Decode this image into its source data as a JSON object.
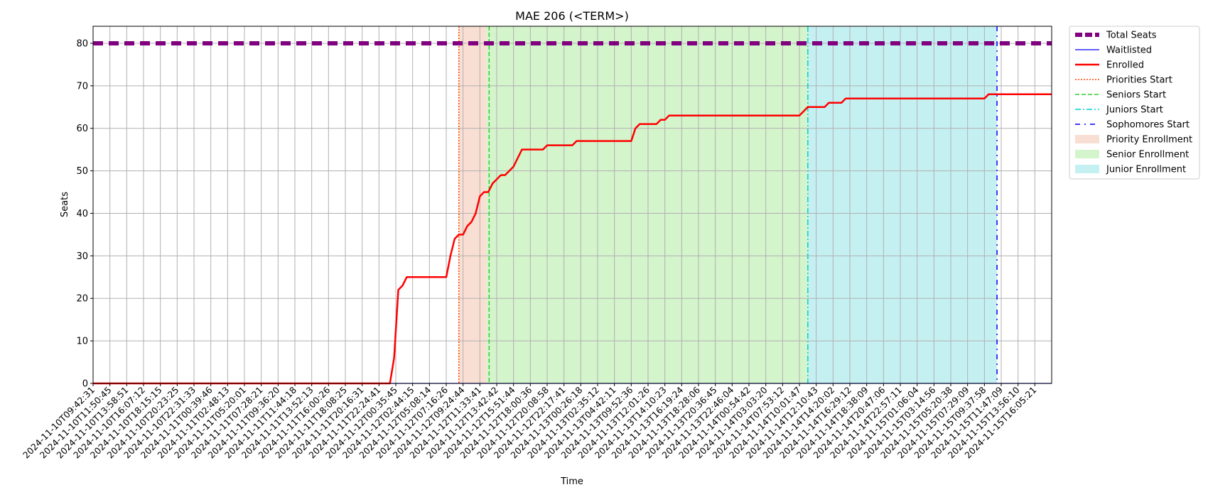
{
  "chart_data": {
    "type": "line",
    "title": "MAE 206 (<TERM>)",
    "xlabel": "Time",
    "ylabel": "Seats",
    "ylim": [
      0,
      84
    ],
    "yticks": [
      0,
      10,
      20,
      30,
      40,
      50,
      60,
      70,
      80
    ],
    "grid": true,
    "legend_placement": "outside upper right",
    "x_tick_labels": [
      "2024-11-10T09:42:31",
      "2024-11-10T11:50:45",
      "2024-11-10T13:58:51",
      "2024-11-10T16:07:12",
      "2024-11-10T18:15:15",
      "2024-11-10T20:23:25",
      "2024-11-10T22:31:33",
      "2024-11-11T00:39:46",
      "2024-11-11T02:48:13",
      "2024-11-11T05:20:01",
      "2024-11-11T07:28:21",
      "2024-11-11T09:36:20",
      "2024-11-11T11:44:18",
      "2024-11-11T13:52:13",
      "2024-11-11T16:00:26",
      "2024-11-11T18:08:25",
      "2024-11-11T20:16:31",
      "2024-11-11T22:24:41",
      "2024-11-12T00:35:45",
      "2024-11-12T02:44:15",
      "2024-11-12T05:08:14",
      "2024-11-12T07:16:26",
      "2024-11-12T09:24:44",
      "2024-11-12T11:33:41",
      "2024-11-12T13:42:42",
      "2024-11-12T15:51:44",
      "2024-11-12T18:00:36",
      "2024-11-12T20:08:58",
      "2024-11-12T22:17:41",
      "2024-11-13T00:26:18",
      "2024-11-13T02:35:12",
      "2024-11-13T04:42:11",
      "2024-11-13T09:52:36",
      "2024-11-13T12:01:26",
      "2024-11-13T14:10:23",
      "2024-11-13T16:19:24",
      "2024-11-13T18:28:06",
      "2024-11-13T20:36:45",
      "2024-11-13T22:46:04",
      "2024-11-14T00:54:42",
      "2024-11-14T03:03:20",
      "2024-11-14T07:53:12",
      "2024-11-14T10:01:47",
      "2024-11-14T12:10:43",
      "2024-11-14T14:20:02",
      "2024-11-14T16:29:12",
      "2024-11-14T18:38:09",
      "2024-11-14T20:47:06",
      "2024-11-14T22:57:11",
      "2024-11-15T01:06:04",
      "2024-11-15T03:14:56",
      "2024-11-15T05:20:38",
      "2024-11-15T07:29:09",
      "2024-11-15T09:37:58",
      "2024-11-15T11:47:09",
      "2024-11-15T13:56:10",
      "2024-11-15T16:05:21"
    ],
    "x_index_range": [
      0,
      57
    ],
    "series": [
      {
        "name": "Total Seats",
        "color": "#800080",
        "style": "dashed-thick",
        "x": [
          0,
          57
        ],
        "values": [
          80,
          80
        ]
      },
      {
        "name": "Waitlisted",
        "color": "#0000ff",
        "style": "solid-thin",
        "x": [
          0,
          57
        ],
        "values": [
          0,
          0
        ]
      },
      {
        "name": "Enrolled",
        "color": "#ff0000",
        "style": "solid-thick",
        "x": [
          0,
          17.65,
          17.9,
          18.15,
          18.4,
          18.65,
          21.0,
          21.25,
          21.5,
          21.75,
          22.0,
          22.25,
          22.5,
          22.75,
          23.0,
          23.25,
          23.5,
          23.75,
          24.0,
          24.25,
          24.5,
          24.75,
          25.0,
          25.25,
          25.5,
          25.75,
          26.0,
          26.5,
          26.75,
          27.0,
          27.5,
          28.5,
          28.75,
          29.0,
          30.0,
          31.0,
          32.0,
          32.25,
          32.5,
          33.5,
          33.75,
          34.0,
          34.25,
          35.0,
          36.0,
          37.0,
          38.0,
          39.0,
          40.0,
          41.0,
          42.0,
          42.5,
          43.5,
          43.75,
          44.5,
          44.75,
          46.0,
          47.0,
          48.0,
          49.0,
          50.0,
          51.0,
          52.0,
          53.0,
          53.25,
          54.0,
          55.0,
          57
        ],
        "values": [
          0,
          0,
          6,
          22,
          23,
          25,
          25,
          30,
          34,
          35,
          35,
          37,
          38,
          40,
          44,
          45,
          45,
          47,
          48,
          49,
          49,
          50,
          51,
          53,
          55,
          55,
          55,
          55,
          55,
          56,
          56,
          56,
          57,
          57,
          57,
          57,
          57,
          60,
          61,
          61,
          62,
          62,
          63,
          63,
          63,
          63,
          63,
          63,
          63,
          63,
          63,
          65,
          65,
          66,
          66,
          67,
          67,
          67,
          67,
          67,
          67,
          67,
          67,
          67,
          68,
          68,
          68,
          68
        ]
      }
    ],
    "vlines": [
      {
        "name": "Priorities Start",
        "x": 21.75,
        "color": "#ff4500",
        "style": "dotted"
      },
      {
        "name": "Seniors Start",
        "x": 23.55,
        "color": "#32cd32",
        "style": "dashed"
      },
      {
        "name": "Juniors Start",
        "x": 42.5,
        "color": "#00ced1",
        "style": "dashdot"
      },
      {
        "name": "Sophomores Start",
        "x": 53.75,
        "color": "#0000ff",
        "style": "loose-dashdot"
      }
    ],
    "spans": [
      {
        "name": "Priority Enrollment",
        "from": 21.75,
        "to": 23.4,
        "color": "#f5c9b5"
      },
      {
        "name": "Senior Enrollment",
        "from": 23.4,
        "to": 42.5,
        "color": "#b8ecaa"
      },
      {
        "name": "Junior Enrollment",
        "from": 42.5,
        "to": 53.75,
        "color": "#9ee6ea"
      }
    ]
  }
}
